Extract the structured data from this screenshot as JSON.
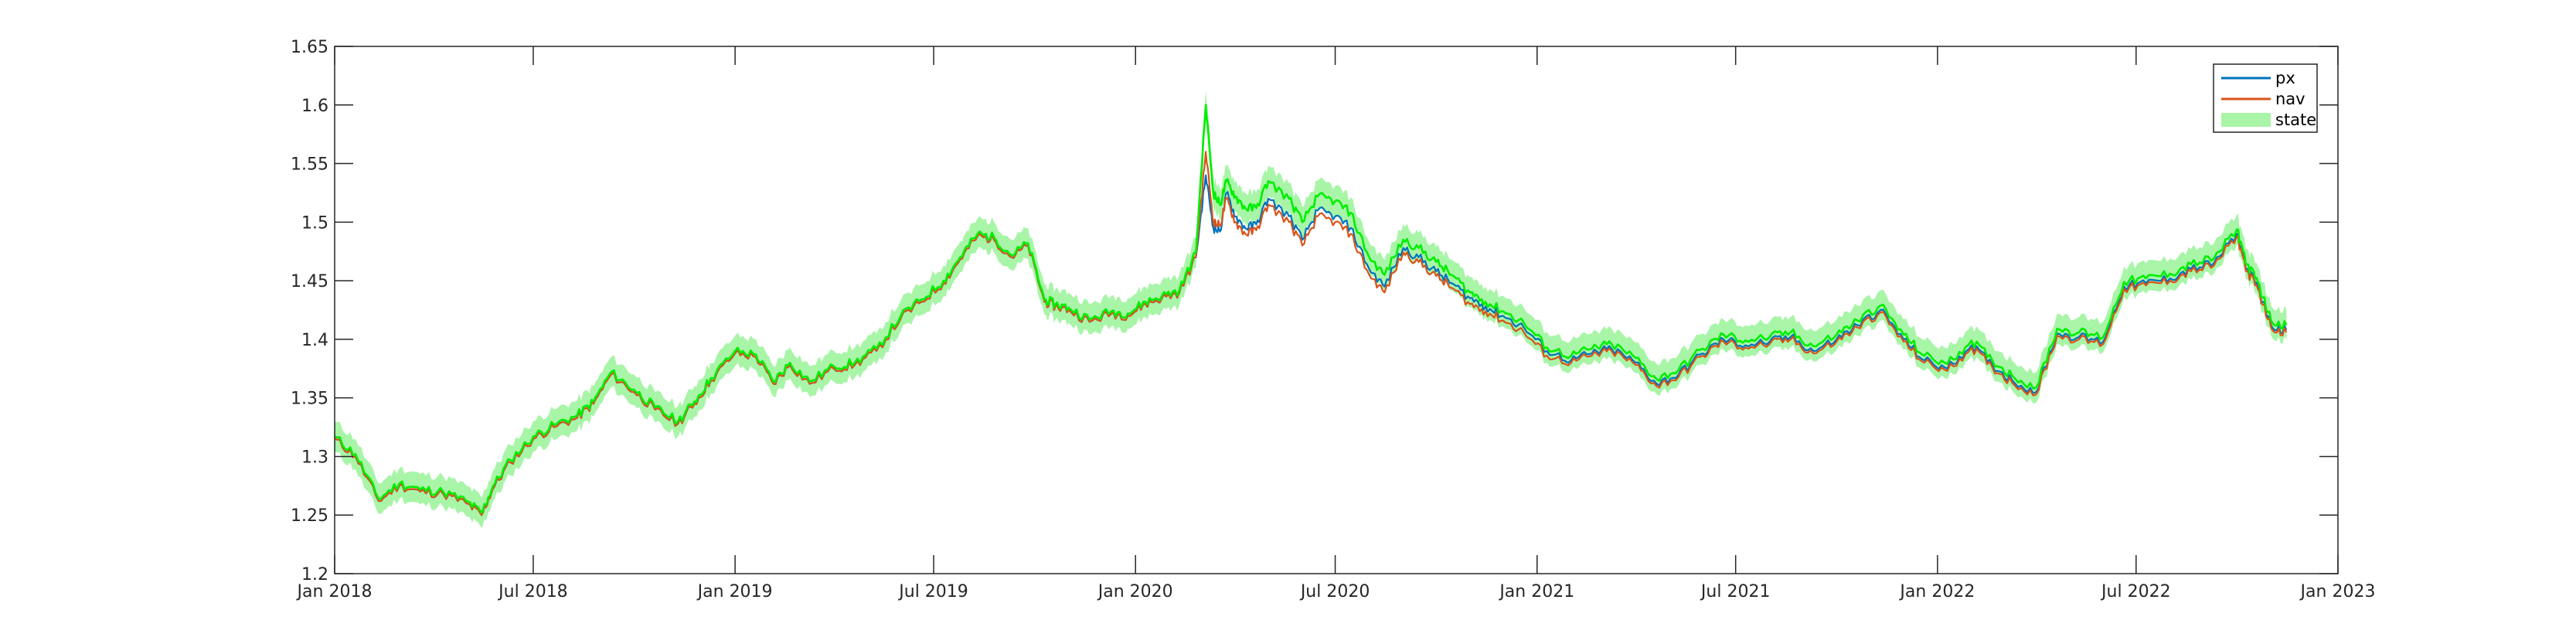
{
  "chart_data": {
    "type": "line",
    "title": "",
    "xlabel": "",
    "ylabel": "",
    "ylim": [
      1.2,
      1.65
    ],
    "xlim": [
      "2018-01-01",
      "2023-01-01"
    ],
    "grid": false,
    "legend_position": "top-right",
    "x_ticks": [
      {
        "date": "2018-01-01",
        "label": "Jan 2018"
      },
      {
        "date": "2018-07-01",
        "label": "Jul 2018"
      },
      {
        "date": "2019-01-01",
        "label": "Jan 2019"
      },
      {
        "date": "2019-07-01",
        "label": "Jul 2019"
      },
      {
        "date": "2020-01-01",
        "label": "Jan 2020"
      },
      {
        "date": "2020-07-01",
        "label": "Jul 2020"
      },
      {
        "date": "2021-01-01",
        "label": "Jan 2021"
      },
      {
        "date": "2021-07-01",
        "label": "Jul 2021"
      },
      {
        "date": "2022-01-01",
        "label": "Jan 2022"
      },
      {
        "date": "2022-07-01",
        "label": "Jul 2022"
      },
      {
        "date": "2023-01-01",
        "label": "Jan 2023"
      }
    ],
    "y_ticks": [
      {
        "value": 1.2,
        "label": "1.2"
      },
      {
        "value": 1.25,
        "label": "1.25"
      },
      {
        "value": 1.3,
        "label": "1.3"
      },
      {
        "value": 1.35,
        "label": "1.35"
      },
      {
        "value": 1.4,
        "label": "1.4"
      },
      {
        "value": 1.45,
        "label": "1.45"
      },
      {
        "value": 1.5,
        "label": "1.5"
      },
      {
        "value": 1.55,
        "label": "1.55"
      },
      {
        "value": 1.6,
        "label": "1.6"
      },
      {
        "value": 1.65,
        "label": "1.65"
      }
    ],
    "state_band_halfwidth": 0.013,
    "x": [
      "2018-01-01",
      "2018-01-20",
      "2018-02-10",
      "2018-03-01",
      "2018-03-20",
      "2018-04-10",
      "2018-05-01",
      "2018-05-15",
      "2018-05-25",
      "2018-06-10",
      "2018-07-01",
      "2018-07-20",
      "2018-08-10",
      "2018-08-25",
      "2018-09-10",
      "2018-10-01",
      "2018-10-20",
      "2018-11-10",
      "2018-11-25",
      "2018-12-10",
      "2019-01-01",
      "2019-01-20",
      "2019-02-05",
      "2019-02-20",
      "2019-03-10",
      "2019-04-01",
      "2019-04-20",
      "2019-05-10",
      "2019-06-01",
      "2019-06-20",
      "2019-07-10",
      "2019-07-25",
      "2019-08-10",
      "2019-08-25",
      "2019-09-10",
      "2019-09-25",
      "2019-10-10",
      "2019-10-20",
      "2019-11-01",
      "2019-11-20",
      "2019-12-10",
      "2019-12-25",
      "2020-01-10",
      "2020-01-25",
      "2020-02-10",
      "2020-02-25",
      "2020-03-05",
      "2020-03-12",
      "2020-03-18",
      "2020-03-24",
      "2020-04-01",
      "2020-04-10",
      "2020-04-20",
      "2020-05-01",
      "2020-05-20",
      "2020-06-01",
      "2020-06-15",
      "2020-07-01",
      "2020-07-15",
      "2020-08-01",
      "2020-08-15",
      "2020-09-01",
      "2020-09-15",
      "2020-10-01",
      "2020-10-15",
      "2020-11-01",
      "2020-11-15",
      "2020-12-01",
      "2020-12-20",
      "2021-01-10",
      "2021-02-01",
      "2021-02-20",
      "2021-03-10",
      "2021-04-01",
      "2021-04-20",
      "2021-05-10",
      "2021-06-01",
      "2021-06-20",
      "2021-07-10",
      "2021-08-01",
      "2021-08-20",
      "2021-09-10",
      "2021-10-01",
      "2021-10-20",
      "2021-11-10",
      "2021-12-01",
      "2021-12-20",
      "2022-01-10",
      "2022-02-01",
      "2022-02-20",
      "2022-03-10",
      "2022-04-01",
      "2022-04-20",
      "2022-05-10",
      "2022-06-01",
      "2022-06-20",
      "2022-07-10",
      "2022-08-01",
      "2022-08-20",
      "2022-09-10",
      "2022-10-01",
      "2022-10-10",
      "2022-10-20",
      "2022-11-01",
      "2022-11-15"
    ],
    "series": [
      {
        "name": "px",
        "color": "#0072bd",
        "values": [
          1.315,
          1.3,
          1.262,
          1.275,
          1.27,
          1.268,
          1.26,
          1.25,
          1.272,
          1.295,
          1.315,
          1.325,
          1.333,
          1.345,
          1.37,
          1.355,
          1.34,
          1.328,
          1.345,
          1.365,
          1.388,
          1.385,
          1.362,
          1.378,
          1.362,
          1.375,
          1.378,
          1.39,
          1.418,
          1.432,
          1.448,
          1.468,
          1.488,
          1.485,
          1.47,
          1.48,
          1.432,
          1.428,
          1.425,
          1.415,
          1.422,
          1.42,
          1.43,
          1.435,
          1.44,
          1.47,
          1.54,
          1.495,
          1.492,
          1.525,
          1.505,
          1.495,
          1.498,
          1.52,
          1.505,
          1.485,
          1.51,
          1.505,
          1.495,
          1.46,
          1.445,
          1.478,
          1.47,
          1.458,
          1.448,
          1.435,
          1.428,
          1.42,
          1.41,
          1.39,
          1.382,
          1.388,
          1.392,
          1.38,
          1.362,
          1.37,
          1.388,
          1.4,
          1.395,
          1.398,
          1.402,
          1.39,
          1.4,
          1.412,
          1.425,
          1.4,
          1.382,
          1.375,
          1.395,
          1.378,
          1.365,
          1.355,
          1.405,
          1.402,
          1.398,
          1.445,
          1.448,
          1.452,
          1.46,
          1.465,
          1.49,
          1.46,
          1.445,
          1.412,
          1.408
        ]
      },
      {
        "name": "nav",
        "color": "#d95319",
        "values": [
          1.315,
          1.3,
          1.262,
          1.275,
          1.27,
          1.268,
          1.26,
          1.25,
          1.272,
          1.295,
          1.315,
          1.325,
          1.333,
          1.345,
          1.37,
          1.355,
          1.34,
          1.328,
          1.345,
          1.365,
          1.388,
          1.385,
          1.362,
          1.378,
          1.362,
          1.375,
          1.378,
          1.39,
          1.418,
          1.432,
          1.448,
          1.468,
          1.488,
          1.485,
          1.47,
          1.48,
          1.432,
          1.428,
          1.425,
          1.415,
          1.422,
          1.42,
          1.43,
          1.435,
          1.44,
          1.47,
          1.56,
          1.5,
          1.497,
          1.52,
          1.5,
          1.49,
          1.493,
          1.515,
          1.5,
          1.48,
          1.505,
          1.5,
          1.49,
          1.455,
          1.44,
          1.474,
          1.466,
          1.454,
          1.444,
          1.43,
          1.424,
          1.416,
          1.406,
          1.386,
          1.38,
          1.386,
          1.39,
          1.378,
          1.36,
          1.368,
          1.386,
          1.398,
          1.393,
          1.396,
          1.4,
          1.388,
          1.398,
          1.41,
          1.423,
          1.398,
          1.38,
          1.373,
          1.393,
          1.376,
          1.363,
          1.353,
          1.403,
          1.4,
          1.396,
          1.443,
          1.446,
          1.45,
          1.458,
          1.463,
          1.488,
          1.458,
          1.443,
          1.41,
          1.406
        ]
      },
      {
        "name": "state",
        "color": "#00ee00",
        "band_color": "#a8f5a8",
        "values": [
          1.317,
          1.302,
          1.264,
          1.277,
          1.272,
          1.27,
          1.262,
          1.252,
          1.274,
          1.297,
          1.317,
          1.327,
          1.335,
          1.347,
          1.372,
          1.357,
          1.342,
          1.33,
          1.347,
          1.367,
          1.39,
          1.387,
          1.364,
          1.38,
          1.364,
          1.377,
          1.38,
          1.392,
          1.42,
          1.434,
          1.45,
          1.47,
          1.49,
          1.487,
          1.472,
          1.482,
          1.434,
          1.43,
          1.427,
          1.417,
          1.424,
          1.422,
          1.432,
          1.437,
          1.442,
          1.474,
          1.6,
          1.525,
          1.515,
          1.535,
          1.522,
          1.512,
          1.512,
          1.535,
          1.52,
          1.5,
          1.522,
          1.518,
          1.508,
          1.47,
          1.455,
          1.485,
          1.478,
          1.466,
          1.455,
          1.44,
          1.432,
          1.424,
          1.414,
          1.393,
          1.386,
          1.392,
          1.396,
          1.384,
          1.366,
          1.374,
          1.392,
          1.404,
          1.399,
          1.402,
          1.406,
          1.394,
          1.404,
          1.416,
          1.429,
          1.404,
          1.386,
          1.379,
          1.399,
          1.382,
          1.369,
          1.359,
          1.409,
          1.406,
          1.402,
          1.449,
          1.452,
          1.456,
          1.464,
          1.469,
          1.494,
          1.464,
          1.449,
          1.416,
          1.412
        ]
      }
    ]
  }
}
